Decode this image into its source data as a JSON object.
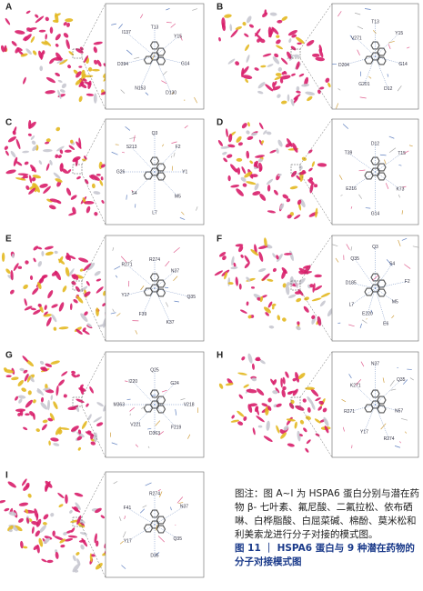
{
  "panels": [
    {
      "letter": "A",
      "residues": [
        "T13",
        "Y15",
        "G14",
        "D130",
        "N153",
        "D394",
        "I137"
      ]
    },
    {
      "letter": "B",
      "residues": [
        "T13",
        "Y15",
        "G14",
        "D12",
        "G201",
        "D204",
        "V271"
      ]
    },
    {
      "letter": "C",
      "residues": [
        "Q3",
        "F2",
        "Y1",
        "M5",
        "L7",
        "S4",
        "G26",
        "S213"
      ]
    },
    {
      "letter": "D",
      "residues": [
        "D12",
        "T15",
        "K73",
        "G14",
        "E216",
        "T39"
      ]
    },
    {
      "letter": "E",
      "residues": [
        "R274",
        "N37",
        "Q35",
        "K37",
        "F39",
        "Y17",
        "R271"
      ]
    },
    {
      "letter": "F",
      "residues": [
        "Q3",
        "S4",
        "F2",
        "M5",
        "E6",
        "E220",
        "L7",
        "D185",
        "Q35"
      ]
    },
    {
      "letter": "G",
      "residues": [
        "Q25",
        "G24",
        "V218",
        "F219",
        "D363",
        "V221",
        "M363",
        "I220"
      ]
    },
    {
      "letter": "H",
      "residues": [
        "N37",
        "Q35",
        "N57",
        "R274",
        "Y17",
        "R271",
        "K271"
      ]
    },
    {
      "letter": "I",
      "residues": [
        "R274",
        "N37",
        "Q35",
        "D35",
        "Y17",
        "F41"
      ]
    }
  ],
  "caption": {
    "note": "图注：图 A~I 为 HSPA6 蛋白分别与潜在药物 β- 七叶素、氟尼酸、二氟拉松、依布硒啉、白桦脂酸、白屈菜碱、棉酚、莫米松和利美索龙进行分子对接的模式图。",
    "title": "图 11 ｜ HSPA6 蛋白与 9 种潜在药物的分子对接模式图"
  }
}
